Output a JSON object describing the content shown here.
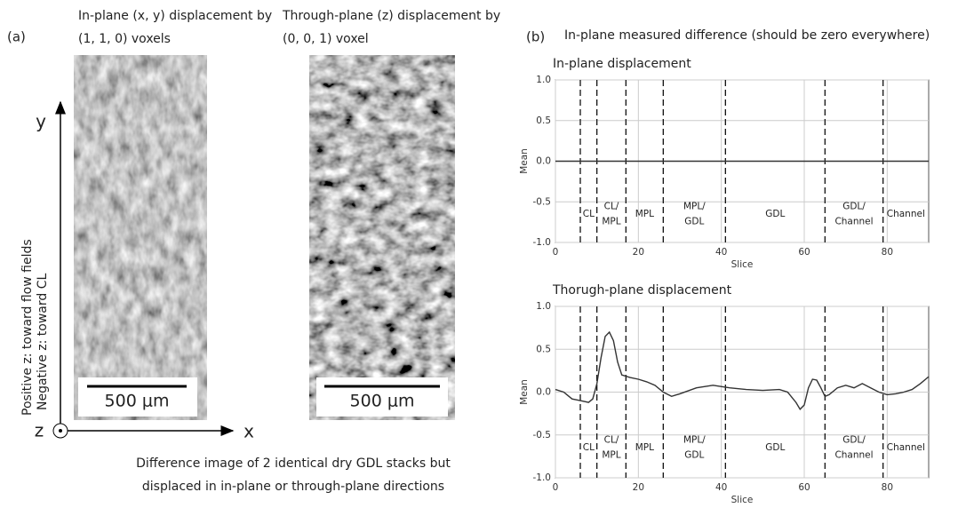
{
  "panel_a": {
    "label": "(a)",
    "image_captions": [
      [
        "In-plane (x, y) displacement by",
        "(1, 1, 0) voxels"
      ],
      [
        "Through-plane (z) displacement by",
        "(0, 0, 1) voxel"
      ]
    ],
    "scale_bars": [
      "500 μm",
      "500 μm"
    ],
    "axes": {
      "y": "y",
      "x": "x",
      "z": "z",
      "z_notes": [
        "Positive z: toward flow fields",
        "Negative z: toward CL"
      ]
    },
    "caption": [
      "Difference image of 2 identical dry GDL stacks but",
      "displaced in in-plane or through-plane directions"
    ]
  },
  "panel_b": {
    "label": "(b)",
    "title": "In-plane measured difference (should be zero everywhere)"
  },
  "chart_data": [
    {
      "type": "line",
      "title": "In-plane displacement",
      "xlabel": "Slice",
      "ylabel": "Mean",
      "color": "#333333",
      "x": [
        0,
        10,
        20,
        30,
        40,
        50,
        60,
        70,
        80,
        90
      ],
      "values": [
        0.0,
        0.0,
        0.0,
        0.0,
        0.0,
        0.0,
        0.0,
        0.0,
        0.0,
        0.0
      ],
      "xlim": [
        0,
        90
      ],
      "ylim": [
        -1,
        1
      ],
      "xticks": [
        0,
        20,
        40,
        60,
        80
      ],
      "yticks": [
        {
          "value": -1,
          "label": "-1.0"
        },
        {
          "value": -0.5,
          "label": "-0.5"
        },
        {
          "value": 0,
          "label": "0.0"
        },
        {
          "value": 0.5,
          "label": "0.5"
        },
        {
          "value": 1,
          "label": "1.0"
        }
      ],
      "grid": true,
      "dividers": [
        6,
        10,
        17,
        26,
        41,
        65,
        79
      ],
      "regions": [
        null,
        [
          "CL"
        ],
        [
          "CL/",
          "MPL"
        ],
        [
          "MPL"
        ],
        [
          "MPL/",
          "GDL"
        ],
        [
          "GDL"
        ],
        [
          "GDL/",
          "Channel"
        ],
        [
          "Channel"
        ]
      ]
    },
    {
      "type": "line",
      "title": "Thorugh-plane displacement",
      "xlabel": "Slice",
      "ylabel": "Mean",
      "color": "#333333",
      "x": [
        0,
        2,
        4,
        6,
        8,
        9,
        10,
        11,
        12,
        13,
        14,
        15,
        16,
        18,
        20,
        22,
        24,
        26,
        28,
        30,
        34,
        38,
        42,
        46,
        50,
        54,
        56,
        58,
        59,
        60,
        61,
        62,
        63,
        64,
        65,
        66,
        68,
        70,
        72,
        74,
        76,
        78,
        80,
        82,
        84,
        86,
        88,
        90
      ],
      "values": [
        0.03,
        0.0,
        -0.08,
        -0.1,
        -0.12,
        -0.08,
        0.1,
        0.4,
        0.65,
        0.7,
        0.6,
        0.35,
        0.2,
        0.17,
        0.15,
        0.12,
        0.08,
        0.0,
        -0.05,
        -0.02,
        0.05,
        0.08,
        0.05,
        0.03,
        0.02,
        0.03,
        0.0,
        -0.12,
        -0.2,
        -0.15,
        0.05,
        0.15,
        0.14,
        0.05,
        -0.05,
        -0.03,
        0.05,
        0.08,
        0.05,
        0.1,
        0.05,
        0.0,
        -0.03,
        -0.02,
        0.0,
        0.03,
        0.1,
        0.18
      ],
      "xlim": [
        0,
        90
      ],
      "ylim": [
        -1,
        1
      ],
      "xticks": [
        0,
        20,
        40,
        60,
        80
      ],
      "yticks": [
        {
          "value": -1,
          "label": "-1.0"
        },
        {
          "value": -0.5,
          "label": "-0.5"
        },
        {
          "value": 0,
          "label": "0.0"
        },
        {
          "value": 0.5,
          "label": "0.5"
        },
        {
          "value": 1,
          "label": "1.0"
        }
      ],
      "grid": true,
      "dividers": [
        6,
        10,
        17,
        26,
        41,
        65,
        79
      ],
      "regions": [
        null,
        [
          "CL"
        ],
        [
          "CL/",
          "MPL"
        ],
        [
          "MPL"
        ],
        [
          "MPL/",
          "GDL"
        ],
        [
          "GDL"
        ],
        [
          "GDL/",
          "Channel"
        ],
        [
          "Channel"
        ]
      ]
    }
  ]
}
